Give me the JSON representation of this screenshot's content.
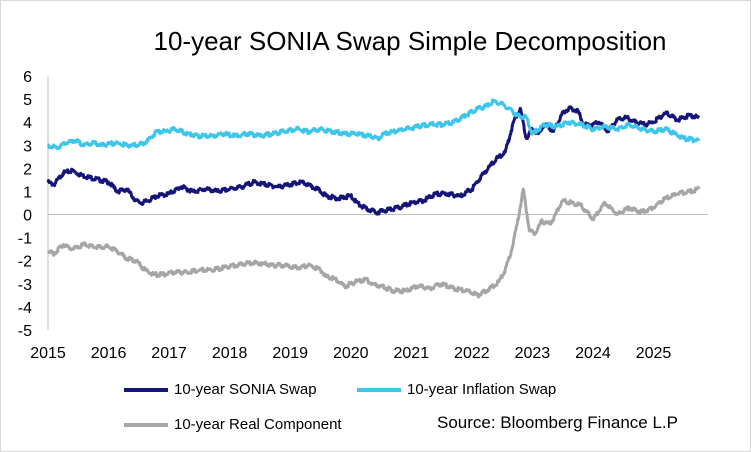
{
  "chart_data": {
    "type": "line",
    "title": "10-year SONIA Swap Simple Decomposition",
    "xlabel": "",
    "ylabel": "",
    "x_ticks": [
      "2015",
      "2016",
      "2017",
      "2018",
      "2019",
      "2020",
      "2021",
      "2022",
      "2023",
      "2024",
      "2025"
    ],
    "y_ticks": [
      "6",
      "5",
      "4",
      "3",
      "2",
      "1",
      "0",
      "-1",
      "-2",
      "-3",
      "-4",
      "-5"
    ],
    "xlim": [
      2015.0,
      2025.9
    ],
    "ylim": [
      -5,
      6
    ],
    "grid": false,
    "legend_position": "bottom",
    "source": "Source: Bloomberg Finance L.P",
    "series": [
      {
        "name": "10-year SONIA Swap",
        "color": "#14147a",
        "x": [
          2015.0,
          2015.1,
          2015.25,
          2015.4,
          2015.55,
          2015.7,
          2015.85,
          2016.0,
          2016.15,
          2016.3,
          2016.45,
          2016.55,
          2016.65,
          2016.8,
          2017.0,
          2017.2,
          2017.4,
          2017.6,
          2017.8,
          2018.0,
          2018.2,
          2018.4,
          2018.6,
          2018.8,
          2019.0,
          2019.2,
          2019.35,
          2019.45,
          2019.6,
          2019.8,
          2020.0,
          2020.15,
          2020.3,
          2020.45,
          2020.6,
          2020.8,
          2021.0,
          2021.2,
          2021.4,
          2021.6,
          2021.8,
          2022.0,
          2022.2,
          2022.4,
          2022.55,
          2022.7,
          2022.8,
          2022.9,
          2023.0,
          2023.1,
          2023.2,
          2023.35,
          2023.5,
          2023.6,
          2023.75,
          2023.85,
          2024.0,
          2024.1,
          2024.25,
          2024.4,
          2024.55,
          2024.7,
          2024.85,
          2025.0,
          2025.2,
          2025.4,
          2025.6,
          2025.75
        ],
        "y": [
          1.4,
          1.3,
          1.8,
          1.9,
          1.7,
          1.6,
          1.5,
          1.4,
          1.0,
          1.1,
          0.6,
          0.5,
          0.6,
          0.8,
          0.9,
          1.2,
          1.0,
          1.1,
          1.0,
          1.1,
          1.2,
          1.4,
          1.3,
          1.2,
          1.3,
          1.4,
          1.2,
          1.1,
          0.8,
          0.7,
          0.8,
          0.4,
          0.2,
          0.1,
          0.2,
          0.3,
          0.5,
          0.6,
          0.9,
          0.9,
          0.8,
          1.1,
          1.8,
          2.4,
          2.7,
          4.1,
          4.6,
          3.3,
          3.7,
          3.5,
          3.9,
          3.6,
          4.4,
          4.6,
          4.5,
          3.9,
          3.9,
          4.0,
          3.6,
          4.1,
          4.2,
          4.0,
          3.9,
          4.0,
          4.4,
          4.1,
          4.3,
          4.2
        ]
      },
      {
        "name": "10-year Inflation Swap",
        "color": "#3dc6ea",
        "x": [
          2015.0,
          2015.15,
          2015.3,
          2015.45,
          2015.6,
          2015.75,
          2015.9,
          2016.1,
          2016.3,
          2016.5,
          2016.65,
          2016.8,
          2016.95,
          2017.1,
          2017.3,
          2017.5,
          2017.7,
          2017.9,
          2018.1,
          2018.3,
          2018.5,
          2018.7,
          2018.9,
          2019.1,
          2019.3,
          2019.5,
          2019.7,
          2019.9,
          2020.1,
          2020.3,
          2020.45,
          2020.55,
          2020.7,
          2020.9,
          2021.1,
          2021.3,
          2021.5,
          2021.7,
          2021.9,
          2022.1,
          2022.25,
          2022.35,
          2022.5,
          2022.6,
          2022.75,
          2022.9,
          2023.0,
          2023.2,
          2023.4,
          2023.6,
          2023.8,
          2024.0,
          2024.2,
          2024.4,
          2024.6,
          2024.8,
          2025.0,
          2025.2,
          2025.35,
          2025.5,
          2025.75
        ],
        "y": [
          3.0,
          2.9,
          3.1,
          3.2,
          3.0,
          3.1,
          3.0,
          3.1,
          3.0,
          3.0,
          3.2,
          3.6,
          3.6,
          3.7,
          3.5,
          3.4,
          3.4,
          3.5,
          3.4,
          3.5,
          3.4,
          3.5,
          3.6,
          3.7,
          3.6,
          3.7,
          3.6,
          3.5,
          3.5,
          3.4,
          3.3,
          3.5,
          3.6,
          3.7,
          3.8,
          3.9,
          3.9,
          4.0,
          4.3,
          4.6,
          4.7,
          4.9,
          4.8,
          4.6,
          4.3,
          4.2,
          3.5,
          3.9,
          3.8,
          4.0,
          3.9,
          3.7,
          3.8,
          3.7,
          3.9,
          3.7,
          3.6,
          3.7,
          3.5,
          3.3,
          3.2
        ]
      },
      {
        "name": "10-year Real Component",
        "color": "#a6a6a6",
        "x": [
          2015.0,
          2015.1,
          2015.25,
          2015.4,
          2015.6,
          2015.8,
          2016.0,
          2016.15,
          2016.3,
          2016.45,
          2016.6,
          2016.75,
          2016.9,
          2017.1,
          2017.3,
          2017.5,
          2017.7,
          2017.9,
          2018.1,
          2018.3,
          2018.5,
          2018.7,
          2018.9,
          2019.1,
          2019.3,
          2019.5,
          2019.6,
          2019.75,
          2019.9,
          2020.1,
          2020.25,
          2020.35,
          2020.5,
          2020.7,
          2020.9,
          2021.1,
          2021.3,
          2021.5,
          2021.7,
          2021.9,
          2022.1,
          2022.3,
          2022.45,
          2022.55,
          2022.65,
          2022.75,
          2022.85,
          2022.95,
          2023.05,
          2023.15,
          2023.3,
          2023.5,
          2023.65,
          2023.8,
          2024.0,
          2024.2,
          2024.4,
          2024.6,
          2024.8,
          2025.0,
          2025.2,
          2025.4,
          2025.6,
          2025.75
        ],
        "y": [
          -1.6,
          -1.7,
          -1.3,
          -1.5,
          -1.3,
          -1.4,
          -1.4,
          -1.6,
          -1.9,
          -2.0,
          -2.4,
          -2.6,
          -2.6,
          -2.5,
          -2.5,
          -2.4,
          -2.4,
          -2.3,
          -2.2,
          -2.1,
          -2.1,
          -2.2,
          -2.2,
          -2.3,
          -2.2,
          -2.4,
          -2.7,
          -2.8,
          -3.1,
          -2.9,
          -2.8,
          -3.0,
          -3.1,
          -3.3,
          -3.3,
          -3.1,
          -3.2,
          -3.0,
          -3.2,
          -3.3,
          -3.5,
          -3.2,
          -2.9,
          -2.4,
          -1.6,
          -0.4,
          1.1,
          -0.7,
          -0.8,
          -0.3,
          -0.4,
          0.6,
          0.5,
          0.4,
          -0.2,
          0.5,
          0.0,
          0.3,
          0.1,
          0.3,
          0.7,
          0.9,
          1.0,
          1.1
        ]
      }
    ]
  }
}
